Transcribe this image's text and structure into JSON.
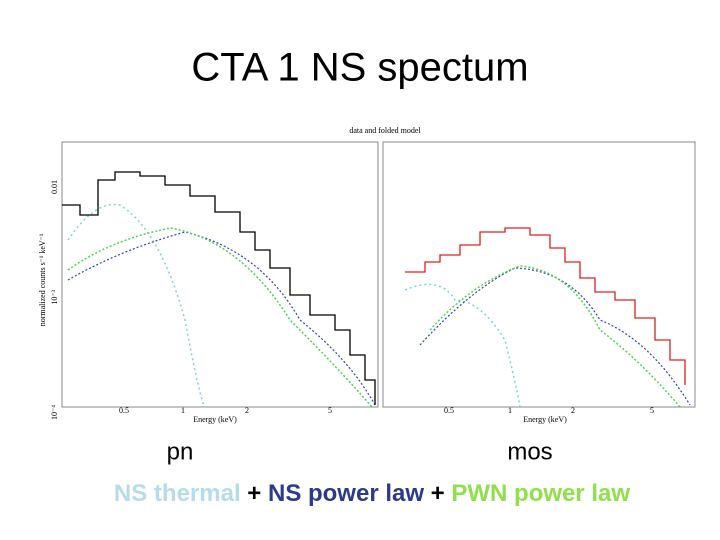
{
  "title": "CTA 1 NS spectum",
  "plot": {
    "title": "data and folded model",
    "y_label": "normalized counts s⁻¹ keV⁻¹",
    "panels": [
      {
        "x_label": "Energy (keV)",
        "x_ticks": [
          "0.5",
          "1",
          "2",
          "5"
        ],
        "y_ticks": [
          "0.01",
          "10⁻³",
          "10⁻⁴"
        ]
      },
      {
        "x_label": "Energy (keV)",
        "x_ticks": [
          "0.5",
          "1",
          "2",
          "5"
        ]
      }
    ]
  },
  "captions": [
    "pn",
    "mos"
  ],
  "legend": [
    {
      "text": "NS thermal",
      "color": "#b4dcea"
    },
    {
      "text": "+",
      "color": "#000000"
    },
    {
      "text": "NS power law",
      "color": "#2b3a8c"
    },
    {
      "text": "+",
      "color": "#000000"
    },
    {
      "text": "PWN power law",
      "color": "#8fe04a"
    }
  ]
}
